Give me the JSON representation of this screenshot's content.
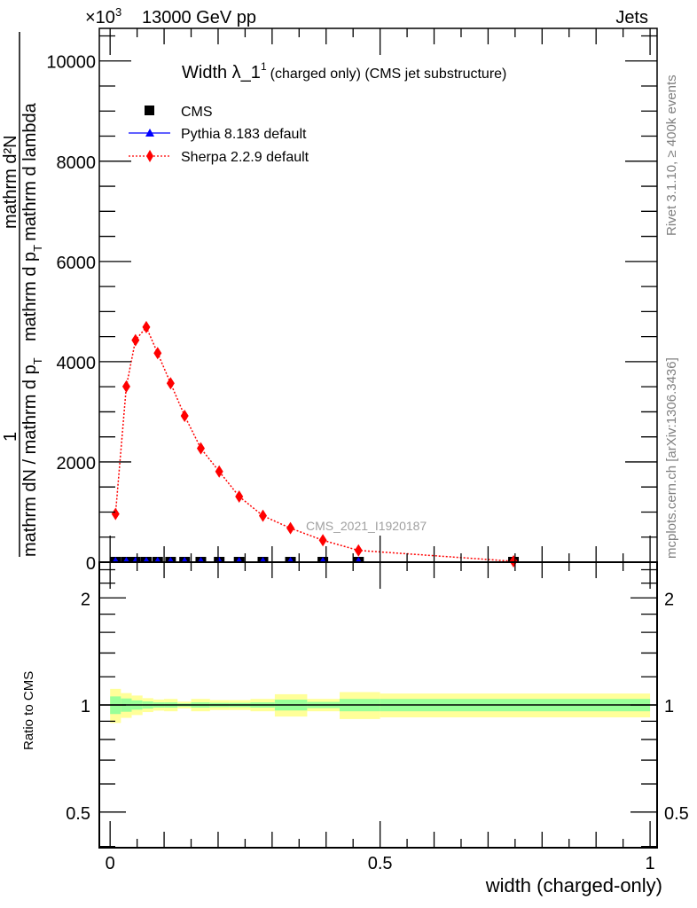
{
  "header": {
    "process": "13000 GeV pp",
    "exponent": "×10",
    "exponent_power": "3",
    "category": "Jets"
  },
  "side_labels": {
    "rivet": "Rivet 3.1.10, ≥ 400k events",
    "mcplots": "mcplots.cern.ch [arXiv:1306.3436]"
  },
  "chart_data": [
    {
      "type": "line",
      "title_main": "Width λ_1",
      "title_sup": "1",
      "title_rest": "(charged only) (CMS jet substructure)",
      "ylabel_num1": "1",
      "ylabel_den1": "mathrm dN / mathrm d p",
      "ylabel_num2": "mathrm d²N",
      "ylabel_den2": "mathrm d p",
      "ylabel_den2b": "mathrm d lambda",
      "ylabel_sub": "T",
      "watermark": "CMS_2021_I1920187",
      "xlim": [
        -0.02,
        1.013
      ],
      "ylim": [
        0,
        10650
      ],
      "yticks": [
        0,
        2000,
        4000,
        6000,
        8000,
        10000
      ],
      "ytick_labels": [
        "0",
        "2000",
        "4000",
        "6000",
        "8000",
        "10000"
      ],
      "bin_edges": [
        0,
        0.02,
        0.04,
        0.06,
        0.08,
        0.1,
        0.125,
        0.15,
        0.185,
        0.22,
        0.26,
        0.305,
        0.365,
        0.425,
        0.5,
        1.0
      ],
      "x": [
        0.01,
        0.03,
        0.047,
        0.067,
        0.088,
        0.112,
        0.138,
        0.168,
        0.202,
        0.239,
        0.283,
        0.334,
        0.394,
        0.46,
        0.747
      ],
      "legend_position": "top-left",
      "series": [
        {
          "name": "CMS",
          "color": "#000000",
          "marker": "square",
          "values": [
            0,
            0,
            0,
            0,
            0,
            0,
            0,
            0,
            0,
            0,
            0,
            0,
            0,
            0,
            0
          ]
        },
        {
          "name": "Pythia 8.183 default",
          "color": "#0000ff",
          "marker": "triangle",
          "line": "solid",
          "values": [
            0,
            0,
            0,
            0,
            0,
            0,
            0,
            0,
            0,
            0,
            0,
            0,
            0,
            0,
            0
          ]
        },
        {
          "name": "Sherpa 2.2.9 default",
          "color": "#ff0000",
          "marker": "diamond",
          "line": "dotted",
          "values": [
            963,
            3504,
            4430,
            4690,
            4170,
            3570,
            2920,
            2270,
            1810,
            1310,
            926,
            678,
            437,
            235,
            18
          ]
        }
      ]
    },
    {
      "type": "area",
      "ylabel": "Ratio to CMS",
      "xlabel": "width (charged-only)",
      "yscale": "log",
      "ylim": [
        0.397,
        2.52
      ],
      "yticks": [
        0.5,
        1,
        2
      ],
      "ytick_labels": [
        "0.5",
        "1",
        "2"
      ],
      "xticks": [
        0,
        0.5,
        1
      ],
      "xtick_labels": [
        "0",
        "0.5",
        "1"
      ],
      "reference": 1,
      "band_colors": {
        "total": "#ffff99",
        "stat": "#99ff99"
      },
      "total_uncertainty": [
        0.11,
        0.08,
        0.063,
        0.045,
        0.036,
        0.04,
        0.022,
        0.04,
        0.032,
        0.032,
        0.04,
        0.072,
        0.04,
        0.087,
        0.077
      ],
      "stat_uncertainty": [
        0.057,
        0.043,
        0.03,
        0.023,
        0.017,
        0.017,
        0.01,
        0.017,
        0.014,
        0.014,
        0.017,
        0.035,
        0.02,
        0.04,
        0.04
      ]
    }
  ]
}
